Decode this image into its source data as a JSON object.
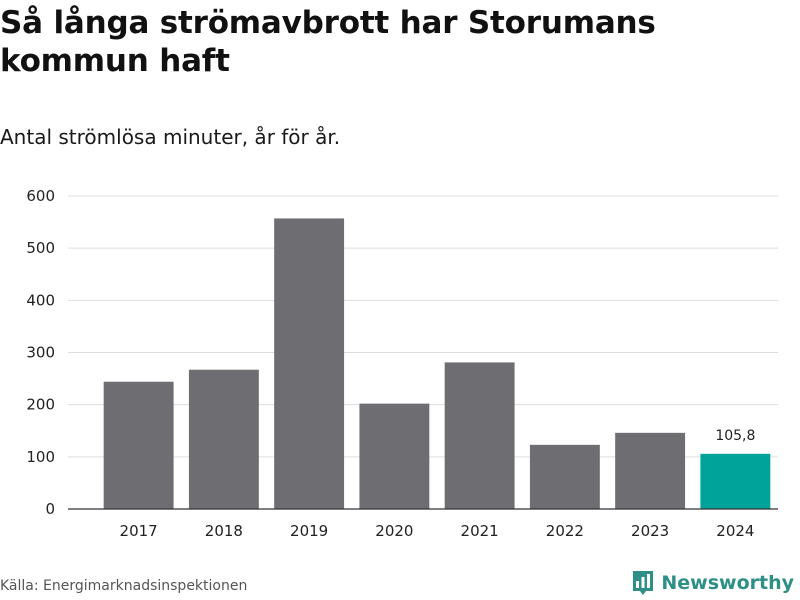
{
  "title": "Så långa strömavbrott har Storumans kommun haft",
  "subtitle": "Antal strömlösa minuter, år för år.",
  "source": "Källa: Energimarknadsinspektionen",
  "brand": {
    "name": "Newsworthy",
    "icon": "newsworthy-logo-icon",
    "color": "#2d8f86"
  },
  "colors": {
    "bar": "#6e6d72",
    "highlight": "#00a39a",
    "grid": "#dddddd",
    "axis": "#333333"
  },
  "chart_data": {
    "type": "bar",
    "title": "Så långa strömavbrott har Storumans kommun haft",
    "subtitle": "Antal strömlösa minuter, år för år.",
    "xlabel": "",
    "ylabel": "",
    "categories": [
      "2017",
      "2018",
      "2019",
      "2020",
      "2021",
      "2022",
      "2023",
      "2024"
    ],
    "values": [
      244,
      267,
      557,
      202,
      281,
      123,
      146,
      105.8
    ],
    "highlight_index": 7,
    "data_labels": [
      {
        "index": 7,
        "text": "105,8"
      }
    ],
    "ylim": [
      0,
      600
    ],
    "yticks": [
      0,
      100,
      200,
      300,
      400,
      500,
      600
    ],
    "grid": true,
    "legend": "none"
  }
}
